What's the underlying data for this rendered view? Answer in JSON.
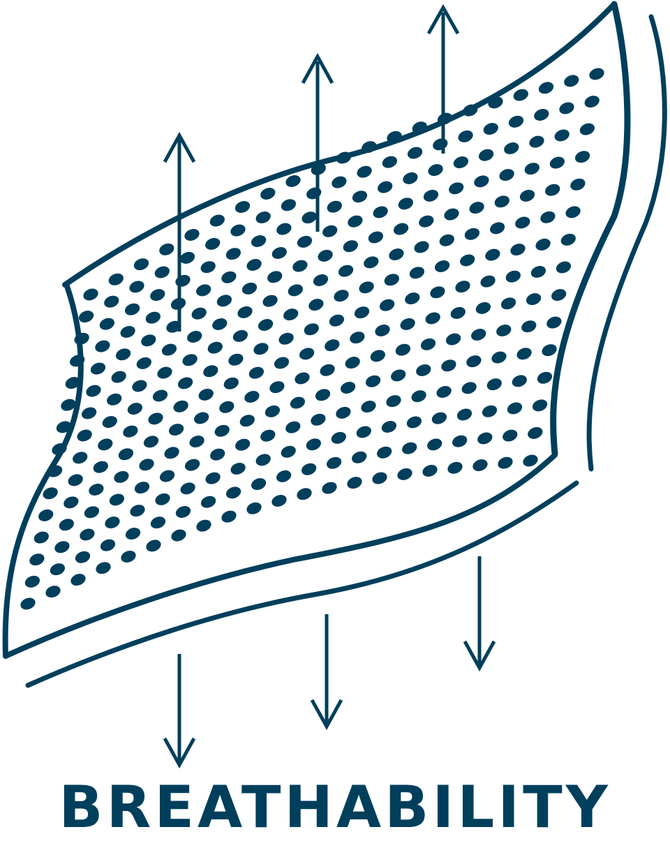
{
  "caption": "BREATHABILITY",
  "colors": {
    "ink": "#003f5c",
    "background": "#ffffff"
  },
  "icons": {
    "fabric": "perforated-fabric-icon",
    "air_out": "arrow-up-icon",
    "air_in": "arrow-down-icon"
  }
}
